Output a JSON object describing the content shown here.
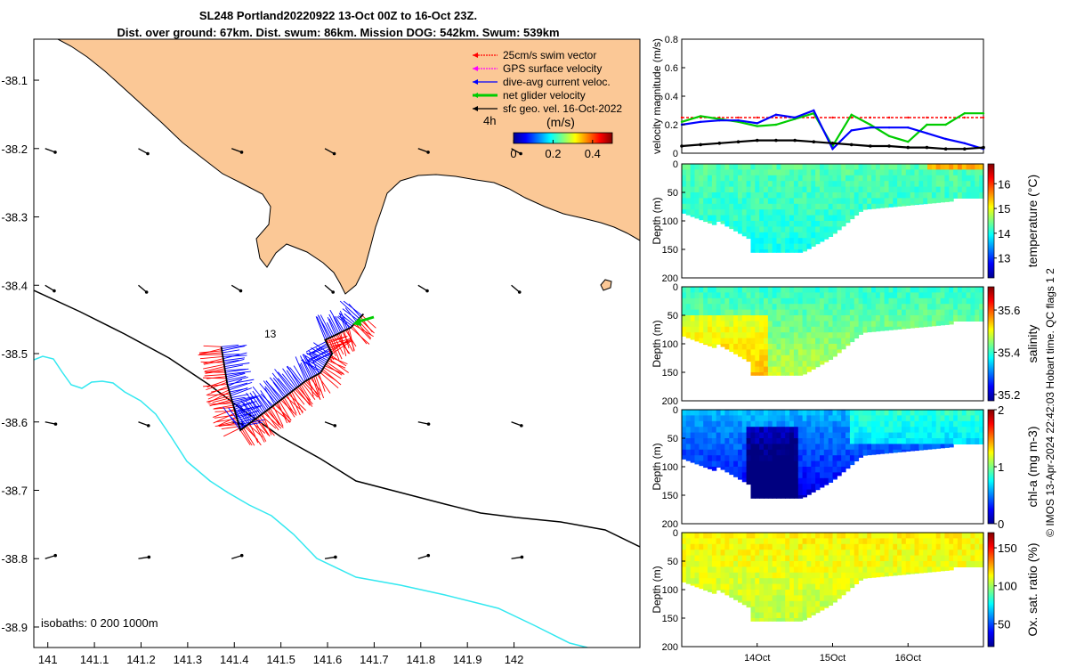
{
  "title": {
    "line1": "SL248 Portland20220922 13-Oct 00Z to 16-Oct 23Z.",
    "line2": "Dist. over ground: 67km. Dist. swum: 86km. Mission DOG: 542km. Swum: 539km"
  },
  "chart_data": [
    {
      "type": "map",
      "x_ticks": [
        "141",
        "141.1",
        "141.2",
        "141.3",
        "141.4",
        "141.5",
        "141.6",
        "141.7",
        "141.8",
        "141.9",
        "142"
      ],
      "y_ticks": [
        "-38.1",
        "-38.2",
        "-38.3",
        "-38.4",
        "-38.5",
        "-38.6",
        "-38.7",
        "-38.8",
        "-38.9"
      ],
      "xlim": [
        140.97,
        142.27
      ],
      "ylim": [
        -38.93,
        -38.04
      ],
      "legend": [
        {
          "label": "25cm/s swim vector",
          "color": "#ff0000"
        },
        {
          "label": "GPS surface velocity",
          "color": "#ff00ff"
        },
        {
          "label": "dive-avg current veloc.",
          "color": "#0000ff"
        },
        {
          "label": "net glider velocity",
          "color": "#00cc00"
        },
        {
          "label": "sfc geo. vel. 16-Oct-2022",
          "color": "#000000"
        }
      ],
      "legend_position": "top-right",
      "scale_label": "4h",
      "colorbar": {
        "label": "(m/s)",
        "ticks": [
          "0",
          "0.2",
          "0.4"
        ],
        "range": [
          0,
          0.5
        ],
        "colormap": "jet"
      },
      "isobaths_label": "isobaths: 0   200  1000m",
      "annotation": "13",
      "colors": {
        "land": "#fbc896",
        "coast": "#000000",
        "isobath_200": "#000000",
        "isobath_1000": "#33e8f0"
      },
      "track": [
        {
          "lon": 141.372,
          "lat": -38.49
        },
        {
          "lon": 141.385,
          "lat": -38.545
        },
        {
          "lon": 141.413,
          "lat": -38.612
        },
        {
          "lon": 141.48,
          "lat": -38.578
        },
        {
          "lon": 141.553,
          "lat": -38.54
        },
        {
          "lon": 141.585,
          "lat": -38.528
        },
        {
          "lon": 141.61,
          "lat": -38.5
        },
        {
          "lon": 141.595,
          "lat": -38.48
        },
        {
          "lon": 141.65,
          "lat": -38.462
        },
        {
          "lon": 141.677,
          "lat": -38.442
        }
      ],
      "geo_velocity_grid": {
        "lons": [
          141.0,
          141.2,
          141.4,
          141.6,
          141.8,
          142.0
        ],
        "lats": [
          -38.2,
          -38.4,
          -38.6,
          -38.8
        ]
      }
    },
    {
      "type": "line",
      "ylabel": "velocity magnitude (m/s)",
      "ylim": [
        0,
        0.8
      ],
      "y_ticks": [
        "0",
        "0.2",
        "0.4",
        "0.6",
        "0.8"
      ],
      "x": [
        13.0,
        13.25,
        13.5,
        13.75,
        14.0,
        14.25,
        14.5,
        14.75,
        15.0,
        15.25,
        15.5,
        15.75,
        16.0,
        16.25,
        16.5,
        16.75,
        17.0
      ],
      "series": [
        {
          "color": "#ff0000",
          "values": [
            0.25,
            0.25,
            0.25,
            0.25,
            0.25,
            0.25,
            0.25,
            0.25,
            0.25,
            0.25,
            0.25,
            0.25,
            0.25,
            0.25,
            0.25,
            0.25,
            0.25
          ]
        },
        {
          "color": "#00cc00",
          "values": [
            0.22,
            0.26,
            0.24,
            0.22,
            0.19,
            0.2,
            0.24,
            0.28,
            0.05,
            0.27,
            0.2,
            0.12,
            0.08,
            0.2,
            0.2,
            0.28,
            0.28
          ]
        },
        {
          "color": "#0000ff",
          "values": [
            0.2,
            0.22,
            0.23,
            0.23,
            0.21,
            0.27,
            0.25,
            0.3,
            0.03,
            0.16,
            0.18,
            0.18,
            0.18,
            0.14,
            0.1,
            0.07,
            0.03
          ]
        },
        {
          "color": "#000000",
          "values": [
            0.05,
            0.06,
            0.07,
            0.08,
            0.09,
            0.09,
            0.09,
            0.08,
            0.07,
            0.06,
            0.05,
            0.05,
            0.04,
            0.04,
            0.03,
            0.03,
            0.04
          ]
        }
      ]
    },
    {
      "type": "heatmap",
      "variable": "temperature (°C)",
      "ylabel": "Depth (m)",
      "y_ticks": [
        "0",
        "50",
        "100",
        "150",
        "200"
      ],
      "colorbar_ticks": [
        "13",
        "14",
        "15",
        "16"
      ],
      "range": [
        12.2,
        16.8
      ],
      "surface_value": 14.3,
      "deep_value": 14.0
    },
    {
      "type": "heatmap",
      "variable": "salinity",
      "ylabel": "Depth (m)",
      "y_ticks": [
        "0",
        "50",
        "100",
        "150",
        "200"
      ],
      "colorbar_ticks": [
        "35.2",
        "35.4",
        "35.6"
      ],
      "range": [
        35.17,
        35.71
      ],
      "surface_value": 35.4,
      "deep_value": 35.48
    },
    {
      "type": "heatmap",
      "variable": "chl-a (mg m-3)",
      "ylabel": "Depth (m)",
      "y_ticks": [
        "0",
        "50",
        "100",
        "150",
        "200"
      ],
      "colorbar_ticks": [
        "0",
        "1",
        "2"
      ],
      "range": [
        0,
        2
      ],
      "surface_value": 0.6,
      "deep_value": 0.15
    },
    {
      "type": "heatmap",
      "variable": "Ox. sat. ratio (%)",
      "ylabel": "Depth (m)",
      "y_ticks": [
        "0",
        "50",
        "100",
        "150",
        "200"
      ],
      "colorbar_ticks": [
        "50",
        "100",
        "150"
      ],
      "range": [
        20,
        170
      ],
      "surface_value": 115,
      "deep_value": 103
    }
  ],
  "time_axis": {
    "ticks": [
      "14Oct",
      "15Oct",
      "16Oct"
    ],
    "values": [
      14,
      15,
      16
    ],
    "range": [
      13,
      17
    ]
  },
  "credit": "© IMOS 13-Apr-2024 22:42:03 Hobart time. QC flags 1  2"
}
